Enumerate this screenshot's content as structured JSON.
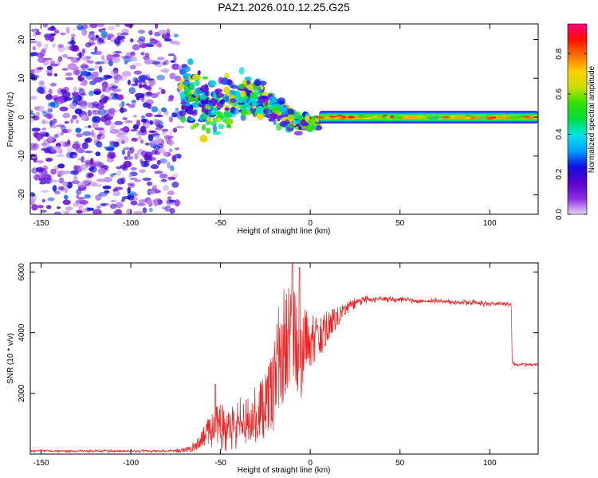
{
  "figure": {
    "title": "PAZ1.2026.010.12.25.G25"
  },
  "chart_data": [
    {
      "type": "heatmap",
      "title": "PAZ1.2026.010.12.25.G25",
      "xlabel": "Height of straight line (km)",
      "ylabel": "Frequency (Hz)",
      "xlim": [
        -156,
        127
      ],
      "ylim": [
        -25,
        24
      ],
      "xticks": [
        -150,
        -100,
        -50,
        0,
        50,
        100
      ],
      "yticks": [
        -20,
        -10,
        0,
        10,
        20
      ],
      "colorbar": {
        "label": "Normalized spectral amplitude",
        "range": [
          0,
          0.95
        ],
        "ticks": [
          0.0,
          0.2,
          0.4,
          0.6,
          0.8
        ],
        "colormap": [
          "#e8d4f5",
          "#8a2be2",
          "#5a00d0",
          "#1010e0",
          "#00a0ff",
          "#00e5e5",
          "#00dd40",
          "#30e000",
          "#c8e000",
          "#ffd000",
          "#ff7000",
          "#ff1000",
          "#ff0080"
        ]
      },
      "regions": [
        {
          "name": "noise",
          "x_range": [
            -156,
            -72
          ],
          "y_range": [
            -25,
            24
          ],
          "amplitude": [
            0.02,
            0.3
          ]
        },
        {
          "name": "transition",
          "x_range": [
            -72,
            5
          ],
          "y_range": [
            -7,
            12
          ],
          "amplitude": [
            0.1,
            0.7
          ]
        },
        {
          "name": "carrier",
          "x_range": [
            5,
            127
          ],
          "y_range": [
            -2,
            2
          ],
          "amplitude": [
            0.4,
            0.95
          ]
        }
      ]
    },
    {
      "type": "line",
      "xlabel": "Height of straight line (km)",
      "ylabel": "SNR (10 * v/v)",
      "xlim": [
        -156,
        127
      ],
      "ylim": [
        0,
        6300
      ],
      "xticks": [
        -150,
        -100,
        -50,
        0,
        50,
        100
      ],
      "yticks": [
        2000,
        4000,
        6000
      ],
      "color": "#ee2222",
      "series": [
        {
          "name": "SNR",
          "x": [
            -156,
            -140,
            -120,
            -100,
            -85,
            -75,
            -68,
            -62,
            -55,
            -50,
            -45,
            -40,
            -35,
            -30,
            -25,
            -20,
            -17,
            -15,
            -13,
            -11,
            -9,
            -7,
            -5,
            -3,
            0,
            5,
            10,
            15,
            20,
            25,
            30,
            35,
            40,
            50,
            60,
            70,
            80,
            90,
            100,
            105,
            110,
            112,
            112.5,
            115,
            120,
            127
          ],
          "y": [
            100,
            100,
            100,
            100,
            100,
            110,
            150,
            350,
            800,
            900,
            800,
            1000,
            1100,
            1300,
            1600,
            2300,
            3300,
            3800,
            3600,
            3900,
            4100,
            3300,
            3000,
            3800,
            3700,
            3900,
            4200,
            4500,
            4800,
            5000,
            5100,
            5100,
            5100,
            5100,
            5050,
            5050,
            5000,
            5000,
            4950,
            4950,
            4950,
            4950,
            3000,
            2950,
            2950,
            2950
          ],
          "noise": [
            40,
            40,
            40,
            40,
            40,
            50,
            80,
            200,
            500,
            600,
            550,
            650,
            700,
            800,
            900,
            1200,
            1500,
            1600,
            1500,
            1300,
            1200,
            1000,
            900,
            800,
            700,
            600,
            400,
            250,
            180,
            150,
            120,
            110,
            100,
            100,
            100,
            100,
            100,
            100,
            100,
            100,
            100,
            100,
            70,
            70,
            70,
            70
          ],
          "peaks": [
            {
              "x": -10,
              "y": 6300
            },
            {
              "x": -6,
              "y": 6150
            },
            {
              "x": -53,
              "y": 2300
            }
          ]
        }
      ]
    }
  ]
}
